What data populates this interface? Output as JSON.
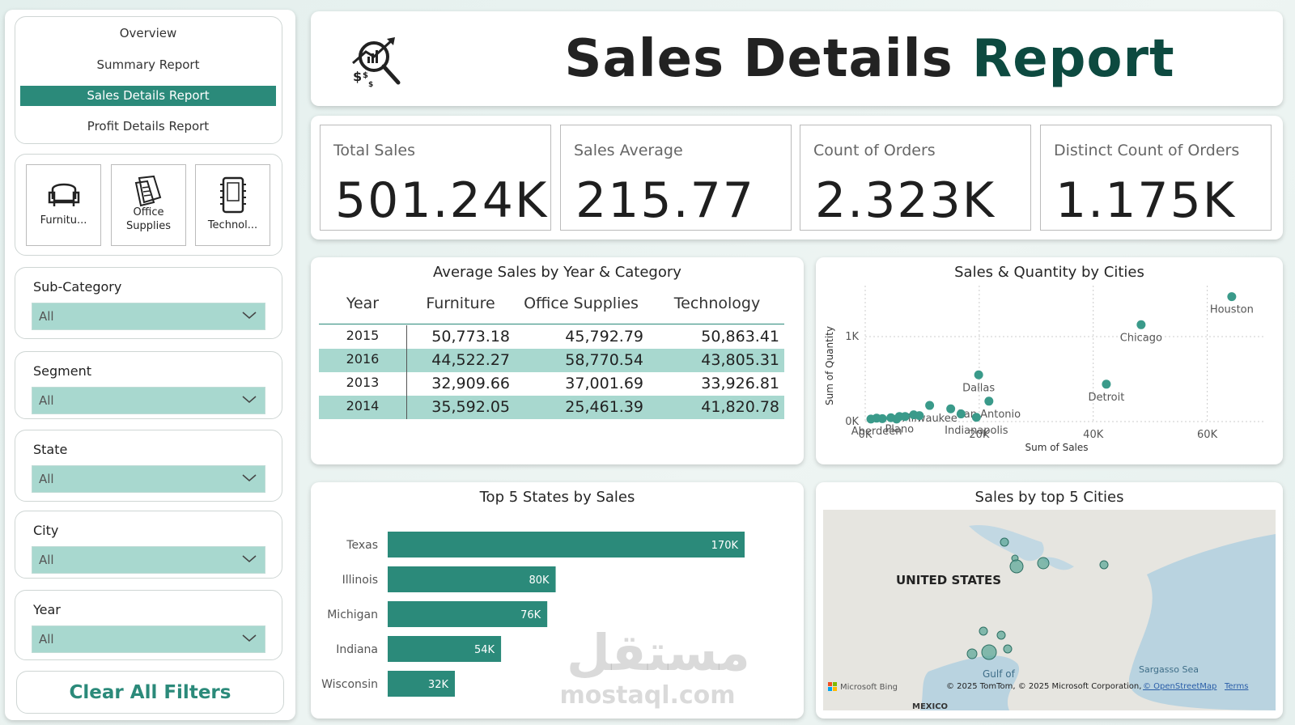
{
  "nav": {
    "items": [
      "Overview",
      "Summary Report",
      "Sales Details Report",
      "Profit Details Report"
    ],
    "active": 2
  },
  "category_buttons": [
    "Furnitu...",
    "Office Supplies",
    "Technol..."
  ],
  "filters": [
    {
      "label": "Sub-Category",
      "value": "All"
    },
    {
      "label": "Segment",
      "value": "All"
    },
    {
      "label": "State",
      "value": "All"
    },
    {
      "label": "City",
      "value": "All"
    },
    {
      "label": "Year",
      "value": "All"
    }
  ],
  "clear_button": "Clear All Filters",
  "header": {
    "title_main": "Sales Details",
    "title_accent": "Report"
  },
  "kpis": [
    {
      "label": "Total Sales",
      "value": "501.24K"
    },
    {
      "label": "Sales Average",
      "value": "215.77"
    },
    {
      "label": "Count of Orders",
      "value": "2.323K"
    },
    {
      "label": "Distinct Count of Orders",
      "value": "1.175K"
    }
  ],
  "table": {
    "title": "Average Sales by Year & Category",
    "columns": [
      "Year",
      "Furniture",
      "Office Supplies",
      "Technology"
    ],
    "rows": [
      [
        "2015",
        "50,773.18",
        "45,792.79",
        "50,863.41"
      ],
      [
        "2016",
        "44,522.27",
        "58,770.54",
        "43,805.31"
      ],
      [
        "2013",
        "32,909.66",
        "37,001.69",
        "33,926.81"
      ],
      [
        "2014",
        "35,592.05",
        "25,461.39",
        "41,820.78"
      ]
    ]
  },
  "chart_data": [
    {
      "type": "scatter",
      "title": "Sales & Quantity by Cities",
      "x_label": "Sum of Sales",
      "y_label": "Sum of Quantity",
      "point_labels": [
        "Houston",
        "Chicago",
        "Dallas",
        "Detroit",
        "San Antonio",
        "Milwaukee",
        "Plano",
        "Indianapolis",
        "Aberdeen",
        null,
        null,
        null,
        null,
        null,
        null,
        null,
        null,
        null
      ],
      "x": [
        64300,
        48400,
        19900,
        42300,
        21700,
        11300,
        6000,
        19500,
        2000,
        15000,
        16800,
        1000,
        3000,
        4500,
        7000,
        8500,
        9500,
        5500
      ],
      "y": [
        1470,
        1140,
        550,
        440,
        240,
        190,
        60,
        50,
        40,
        150,
        90,
        30,
        35,
        45,
        60,
        80,
        70,
        30
      ],
      "color": "#3a9a8a",
      "xlim": [
        0,
        70000
      ],
      "ylim": [
        0,
        1600
      ],
      "xticks": [
        {
          "value": 0,
          "label": "0K"
        },
        {
          "value": 20000,
          "label": "20K"
        },
        {
          "value": 40000,
          "label": "40K"
        },
        {
          "value": 60000,
          "label": "60K"
        }
      ],
      "yticks": [
        {
          "value": 0,
          "label": "0K"
        },
        {
          "value": 1000,
          "label": "1K"
        }
      ],
      "grid": true
    },
    {
      "type": "bar",
      "orientation": "horizontal",
      "title": "Top 5 States by Sales",
      "categories": [
        "Texas",
        "Illinois",
        "Michigan",
        "Indiana",
        "Wisconsin"
      ],
      "values": [
        170,
        80,
        76,
        54,
        32
      ],
      "value_labels": [
        "170K",
        "80K",
        "76K",
        "54K",
        "32K"
      ],
      "color": "#2b8a7a"
    }
  ],
  "map": {
    "title": "Sales by top 5 Cities",
    "country_label": "UNITED STATES",
    "water_labels": [
      "Gulf of",
      "Sargasso Sea"
    ],
    "neighbor_label": "MEXICO",
    "provider": "Microsoft Bing",
    "attribution": "© 2025 TomTom, © 2025 Microsoft Corporation,",
    "osm": "© OpenStreetMap",
    "terms": "Terms"
  },
  "watermark": {
    "arabic": "مستقل",
    "latin": "mostaql.com"
  }
}
